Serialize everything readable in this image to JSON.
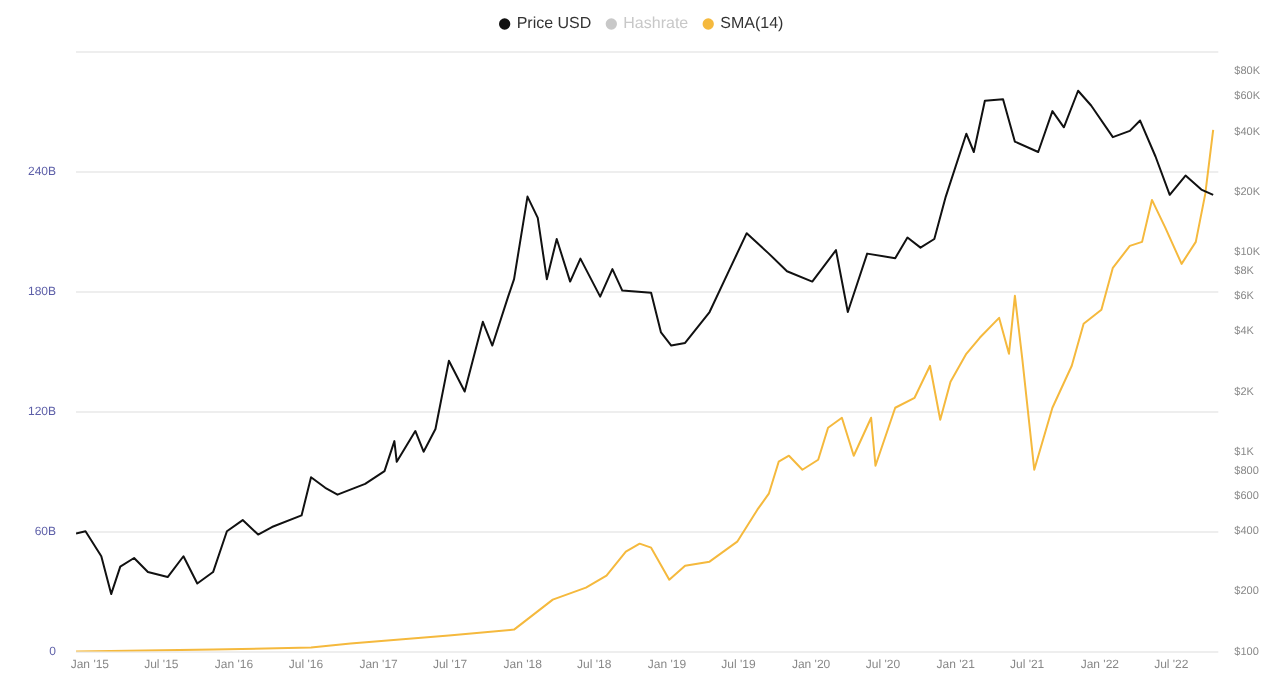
{
  "chart_data": {
    "type": "line",
    "legend": "top",
    "grid": "y",
    "marker": "none",
    "line_style": "solid",
    "log": "y2",
    "xlim": [
      "2014-11-27",
      "2022-10-28"
    ],
    "xticks": [
      {
        "value": "2015-01-01",
        "label": "Jan '15"
      },
      {
        "value": "2015-07-01",
        "label": "Jul '15"
      },
      {
        "value": "2016-01-01",
        "label": "Jan '16"
      },
      {
        "value": "2016-07-01",
        "label": "Jul '16"
      },
      {
        "value": "2017-01-01",
        "label": "Jan '17"
      },
      {
        "value": "2017-07-01",
        "label": "Jul '17"
      },
      {
        "value": "2018-01-01",
        "label": "Jan '18"
      },
      {
        "value": "2018-07-01",
        "label": "Jul '18"
      },
      {
        "value": "2019-01-01",
        "label": "Jan '19"
      },
      {
        "value": "2019-07-01",
        "label": "Jul '19"
      },
      {
        "value": "2020-01-01",
        "label": "Jan '20"
      },
      {
        "value": "2020-07-01",
        "label": "Jul '20"
      },
      {
        "value": "2021-01-01",
        "label": "Jan '21"
      },
      {
        "value": "2021-07-01",
        "label": "Jul '21"
      },
      {
        "value": "2022-01-01",
        "label": "Jan '22"
      },
      {
        "value": "2022-07-01",
        "label": "Jul '22"
      }
    ],
    "ylim": [
      0,
      300
    ],
    "yticks": [
      0,
      {
        "value": 60,
        "label": "60B"
      },
      {
        "value": 120,
        "label": "120B"
      },
      {
        "value": 180,
        "label": "180B"
      },
      {
        "value": 240,
        "label": "240B"
      },
      {
        "value": 300,
        "label": null
      }
    ],
    "y2lim": [
      100,
      100000
    ],
    "y2ticks": [
      {
        "value": 100,
        "label": "$100"
      },
      {
        "value": 200,
        "label": "$200"
      },
      {
        "value": 400,
        "label": "$400"
      },
      {
        "value": 600,
        "label": "$600"
      },
      {
        "value": 800,
        "label": "$800"
      },
      {
        "value": 1000,
        "label": "$1K"
      },
      {
        "value": 2000,
        "label": "$2K"
      },
      {
        "value": 4000,
        "label": "$4K"
      },
      {
        "value": 6000,
        "label": "$6K"
      },
      {
        "value": 8000,
        "label": "$8K"
      },
      {
        "value": 10000,
        "label": "$10K"
      },
      {
        "value": 20000,
        "label": "$20K"
      },
      {
        "value": 40000,
        "label": "$40K"
      },
      {
        "value": 60000,
        "label": "$60K"
      },
      {
        "value": 80000,
        "label": "$80K"
      }
    ],
    "series": [
      {
        "name": "Price USD",
        "color": "#111111",
        "axis": "y2",
        "x": [
          "2014-11-27",
          "2014-12-21",
          "2015-01-30",
          "2015-02-24",
          "2015-03-19",
          "2015-04-23",
          "2015-05-28",
          "2015-07-17",
          "2015-08-26",
          "2015-09-30",
          "2015-11-09",
          "2015-12-14",
          "2016-01-23",
          "2016-03-02",
          "2016-04-06",
          "2016-06-20",
          "2016-07-14",
          "2016-08-19",
          "2016-09-19",
          "2016-11-28",
          "2017-01-16",
          "2017-02-10",
          "2017-02-16",
          "2017-04-04",
          "2017-04-25",
          "2017-05-25",
          "2017-06-28",
          "2017-08-07",
          "2017-09-22",
          "2017-10-16",
          "2017-11-25",
          "2017-12-10",
          "2018-01-13",
          "2018-02-08",
          "2018-03-03",
          "2018-03-28",
          "2018-05-01",
          "2018-05-27",
          "2018-07-16",
          "2018-08-16",
          "2018-09-10",
          "2018-11-22",
          "2018-12-17",
          "2019-01-12",
          "2019-02-16",
          "2019-04-19",
          "2019-06-09",
          "2019-07-22",
          "2019-09-16",
          "2019-11-01",
          "2020-01-04",
          "2020-03-04",
          "2020-04-03",
          "2020-05-22",
          "2020-08-01",
          "2020-09-01",
          "2020-10-04",
          "2020-11-08",
          "2020-12-07",
          "2021-01-28",
          "2021-02-16",
          "2021-03-16",
          "2021-05-01",
          "2021-05-31",
          "2021-07-29",
          "2021-09-03",
          "2021-10-02",
          "2021-11-07",
          "2021-12-10",
          "2022-02-03",
          "2022-03-18",
          "2022-04-13",
          "2022-05-22",
          "2022-06-27",
          "2022-08-06",
          "2022-09-15",
          "2022-10-15"
        ],
        "values": [
          390,
          400,
          300,
          194,
          266,
          294,
          250,
          236,
          300,
          219,
          250,
          400,
          455,
          385,
          420,
          480,
          745,
          660,
          610,
          690,
          800,
          1130,
          890,
          1270,
          1000,
          1300,
          2850,
          2000,
          4470,
          3400,
          5970,
          7300,
          18900,
          14800,
          7300,
          11600,
          7100,
          9250,
          5970,
          8200,
          6400,
          6250,
          3950,
          3400,
          3500,
          5000,
          8200,
          12400,
          9800,
          8000,
          7100,
          10200,
          5000,
          9800,
          9300,
          11800,
          10500,
          11600,
          18900,
          39000,
          31600,
          57000,
          58000,
          35600,
          31600,
          50600,
          42000,
          64000,
          54000,
          37500,
          40300,
          45400,
          30000,
          19300,
          24100,
          20500,
          19300
        ]
      },
      {
        "name": "Hashrate",
        "color": "#c8c8c8"
      },
      {
        "name": "SMA(14)",
        "color": "#f5b93d",
        "x": [
          "2014-11-27",
          "2015-11-09",
          "2016-07-14",
          "2016-10-22",
          "2017-06-28",
          "2017-12-10",
          "2018-03-18",
          "2018-06-10",
          "2018-08-01",
          "2018-09-19",
          "2018-10-24",
          "2018-11-22",
          "2019-01-07",
          "2019-02-16",
          "2019-04-19",
          "2019-06-28",
          "2019-08-18",
          "2019-09-16",
          "2019-10-11",
          "2019-11-06",
          "2019-12-10",
          "2020-01-19",
          "2020-02-13",
          "2020-03-19",
          "2020-04-18",
          "2020-06-01",
          "2020-06-12",
          "2020-08-01",
          "2020-09-19",
          "2020-10-28",
          "2020-11-23",
          "2020-12-19",
          "2021-01-28",
          "2021-03-03",
          "2021-04-21",
          "2021-05-16",
          "2021-05-31",
          "2021-06-19",
          "2021-07-19",
          "2021-09-03",
          "2021-10-22",
          "2021-11-21",
          "2022-01-05",
          "2022-02-03",
          "2022-03-18",
          "2022-04-18",
          "2022-05-13",
          "2022-06-16",
          "2022-07-27",
          "2022-09-01",
          "2022-09-25",
          "2022-10-15"
        ],
        "values": [
          0,
          1,
          2,
          4,
          8,
          11,
          26,
          32,
          38,
          50,
          54,
          52,
          36,
          43,
          45,
          55,
          71,
          79,
          95,
          98,
          91,
          96,
          112,
          117,
          98,
          117,
          93,
          122,
          127,
          143,
          116,
          135,
          149,
          157,
          167,
          149,
          178,
          146,
          91,
          122,
          143,
          164,
          171,
          192,
          203,
          205,
          226,
          212,
          194,
          205,
          229,
          261
        ]
      }
    ]
  }
}
